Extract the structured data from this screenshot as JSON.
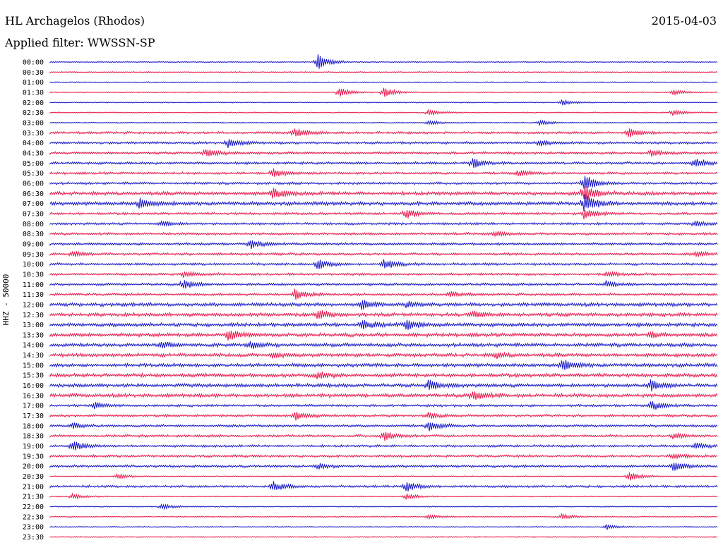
{
  "header": {
    "station": "HL Archagelos (Rhodos)",
    "date": "2015-04-03",
    "filter": "Applied filter: WWSSN-SP"
  },
  "chart_data": {
    "type": "line",
    "title": "HL Archagelos (Rhodos)",
    "subtitle": "Applied filter: WWSSN-SP",
    "date": "2015-04-03",
    "ylabel": "HHZ - 50000",
    "xlabel": "",
    "grid": false,
    "legend": "none",
    "tick_labels": [
      "00:00",
      "00:30",
      "01:00",
      "01:30",
      "02:00",
      "02:30",
      "03:00",
      "03:30",
      "04:00",
      "04:30",
      "05:00",
      "05:30",
      "06:00",
      "06:30",
      "07:00",
      "07:30",
      "08:00",
      "08:30",
      "09:00",
      "09:30",
      "10:00",
      "10:30",
      "11:00",
      "11:30",
      "12:00",
      "12:30",
      "13:00",
      "13:30",
      "14:00",
      "14:30",
      "15:00",
      "15:30",
      "16:00",
      "16:30",
      "17:00",
      "17:30",
      "18:00",
      "18:30",
      "19:00",
      "19:30",
      "20:00",
      "20:30",
      "21:00",
      "21:30",
      "22:00",
      "22:30",
      "23:00",
      "23:30"
    ],
    "trace_colors": [
      "#1515c8",
      "#e8174a"
    ],
    "traces": [
      {
        "start": "00:00",
        "activity": "low",
        "events": [
          {
            "minute": 12,
            "amp": "large"
          }
        ]
      },
      {
        "start": "00:30",
        "activity": "low",
        "events": []
      },
      {
        "start": "01:00",
        "activity": "low",
        "events": []
      },
      {
        "start": "01:30",
        "activity": "low",
        "events": [
          {
            "minute": 13,
            "amp": "medium"
          },
          {
            "minute": 15,
            "amp": "medium"
          },
          {
            "minute": 28,
            "amp": "small"
          }
        ]
      },
      {
        "start": "02:00",
        "activity": "low",
        "events": [
          {
            "minute": 23,
            "amp": "small"
          }
        ]
      },
      {
        "start": "02:30",
        "activity": "low",
        "events": [
          {
            "minute": 17,
            "amp": "small"
          },
          {
            "minute": 28,
            "amp": "small"
          }
        ]
      },
      {
        "start": "03:00",
        "activity": "low",
        "events": [
          {
            "minute": 17,
            "amp": "small"
          },
          {
            "minute": 22,
            "amp": "small"
          }
        ]
      },
      {
        "start": "03:30",
        "activity": "medium",
        "events": [
          {
            "minute": 11,
            "amp": "medium"
          },
          {
            "minute": 26,
            "amp": "medium"
          }
        ]
      },
      {
        "start": "04:00",
        "activity": "medium",
        "events": [
          {
            "minute": 8,
            "amp": "medium"
          },
          {
            "minute": 22,
            "amp": "small"
          }
        ]
      },
      {
        "start": "04:30",
        "activity": "medium",
        "events": [
          {
            "minute": 7,
            "amp": "medium"
          },
          {
            "minute": 27,
            "amp": "small"
          }
        ]
      },
      {
        "start": "05:00",
        "activity": "medium",
        "events": [
          {
            "minute": 19,
            "amp": "medium"
          },
          {
            "minute": 29,
            "amp": "medium"
          }
        ]
      },
      {
        "start": "05:30",
        "activity": "medium",
        "events": [
          {
            "minute": 10,
            "amp": "medium"
          },
          {
            "minute": 21,
            "amp": "small"
          }
        ]
      },
      {
        "start": "06:00",
        "activity": "medium",
        "events": [
          {
            "minute": 24,
            "amp": "large"
          }
        ]
      },
      {
        "start": "06:30",
        "activity": "high",
        "events": [
          {
            "minute": 10,
            "amp": "medium"
          },
          {
            "minute": 24,
            "amp": "large"
          }
        ]
      },
      {
        "start": "07:00",
        "activity": "high",
        "events": [
          {
            "minute": 4,
            "amp": "medium"
          },
          {
            "minute": 24,
            "amp": "large"
          }
        ]
      },
      {
        "start": "07:30",
        "activity": "medium",
        "events": [
          {
            "minute": 16,
            "amp": "medium"
          },
          {
            "minute": 24,
            "amp": "medium"
          }
        ]
      },
      {
        "start": "08:00",
        "activity": "medium",
        "events": [
          {
            "minute": 5,
            "amp": "small"
          },
          {
            "minute": 29,
            "amp": "small"
          }
        ]
      },
      {
        "start": "08:30",
        "activity": "medium",
        "events": [
          {
            "minute": 20,
            "amp": "small"
          }
        ]
      },
      {
        "start": "09:00",
        "activity": "medium",
        "events": [
          {
            "minute": 9,
            "amp": "medium"
          }
        ]
      },
      {
        "start": "09:30",
        "activity": "medium",
        "events": [
          {
            "minute": 1,
            "amp": "small"
          },
          {
            "minute": 29,
            "amp": "small"
          }
        ]
      },
      {
        "start": "10:00",
        "activity": "medium",
        "events": [
          {
            "minute": 12,
            "amp": "medium"
          },
          {
            "minute": 15,
            "amp": "medium"
          }
        ]
      },
      {
        "start": "10:30",
        "activity": "medium",
        "events": [
          {
            "minute": 6,
            "amp": "small"
          },
          {
            "minute": 25,
            "amp": "small"
          }
        ]
      },
      {
        "start": "11:00",
        "activity": "medium",
        "events": [
          {
            "minute": 6,
            "amp": "medium"
          },
          {
            "minute": 25,
            "amp": "small"
          }
        ]
      },
      {
        "start": "11:30",
        "activity": "medium",
        "events": [
          {
            "minute": 11,
            "amp": "medium"
          },
          {
            "minute": 18,
            "amp": "small"
          }
        ]
      },
      {
        "start": "12:00",
        "activity": "high",
        "events": [
          {
            "minute": 14,
            "amp": "medium"
          },
          {
            "minute": 16,
            "amp": "small"
          }
        ]
      },
      {
        "start": "12:30",
        "activity": "high",
        "events": [
          {
            "minute": 12,
            "amp": "medium"
          },
          {
            "minute": 19,
            "amp": "small"
          }
        ]
      },
      {
        "start": "13:00",
        "activity": "high",
        "events": [
          {
            "minute": 14,
            "amp": "medium"
          },
          {
            "minute": 16,
            "amp": "medium"
          }
        ]
      },
      {
        "start": "13:30",
        "activity": "high",
        "events": [
          {
            "minute": 8,
            "amp": "medium"
          },
          {
            "minute": 27,
            "amp": "small"
          }
        ]
      },
      {
        "start": "14:00",
        "activity": "high",
        "events": [
          {
            "minute": 5,
            "amp": "small"
          },
          {
            "minute": 9,
            "amp": "small"
          }
        ]
      },
      {
        "start": "14:30",
        "activity": "high",
        "events": [
          {
            "minute": 10,
            "amp": "small"
          },
          {
            "minute": 20,
            "amp": "small"
          }
        ]
      },
      {
        "start": "15:00",
        "activity": "high",
        "events": [
          {
            "minute": 23,
            "amp": "medium"
          }
        ]
      },
      {
        "start": "15:30",
        "activity": "high",
        "events": [
          {
            "minute": 12,
            "amp": "small"
          }
        ]
      },
      {
        "start": "16:00",
        "activity": "high",
        "events": [
          {
            "minute": 17,
            "amp": "medium"
          },
          {
            "minute": 27,
            "amp": "medium"
          }
        ]
      },
      {
        "start": "16:30",
        "activity": "high",
        "events": [
          {
            "minute": 19,
            "amp": "medium"
          }
        ]
      },
      {
        "start": "17:00",
        "activity": "medium",
        "events": [
          {
            "minute": 2,
            "amp": "small"
          },
          {
            "minute": 27,
            "amp": "medium"
          }
        ]
      },
      {
        "start": "17:30",
        "activity": "medium",
        "events": [
          {
            "minute": 11,
            "amp": "medium"
          },
          {
            "minute": 17,
            "amp": "small"
          }
        ]
      },
      {
        "start": "18:00",
        "activity": "medium",
        "events": [
          {
            "minute": 1,
            "amp": "small"
          },
          {
            "minute": 17,
            "amp": "medium"
          }
        ]
      },
      {
        "start": "18:30",
        "activity": "medium",
        "events": [
          {
            "minute": 15,
            "amp": "medium"
          },
          {
            "minute": 28,
            "amp": "small"
          }
        ]
      },
      {
        "start": "19:00",
        "activity": "medium",
        "events": [
          {
            "minute": 1,
            "amp": "medium"
          },
          {
            "minute": 29,
            "amp": "small"
          }
        ]
      },
      {
        "start": "19:30",
        "activity": "medium",
        "events": [
          {
            "minute": 28,
            "amp": "small"
          }
        ]
      },
      {
        "start": "20:00",
        "activity": "medium",
        "events": [
          {
            "minute": 12,
            "amp": "small"
          },
          {
            "minute": 28,
            "amp": "medium"
          }
        ]
      },
      {
        "start": "20:30",
        "activity": "low",
        "events": [
          {
            "minute": 3,
            "amp": "small"
          },
          {
            "minute": 26,
            "amp": "medium"
          }
        ]
      },
      {
        "start": "21:00",
        "activity": "medium",
        "events": [
          {
            "minute": 10,
            "amp": "medium"
          },
          {
            "minute": 16,
            "amp": "medium"
          }
        ]
      },
      {
        "start": "21:30",
        "activity": "low",
        "events": [
          {
            "minute": 1,
            "amp": "small"
          },
          {
            "minute": 16,
            "amp": "small"
          }
        ]
      },
      {
        "start": "22:00",
        "activity": "low",
        "events": [
          {
            "minute": 5,
            "amp": "small"
          }
        ]
      },
      {
        "start": "22:30",
        "activity": "low",
        "events": [
          {
            "minute": 17,
            "amp": "small"
          },
          {
            "minute": 23,
            "amp": "small"
          }
        ]
      },
      {
        "start": "23:00",
        "activity": "low",
        "events": [
          {
            "minute": 25,
            "amp": "small"
          }
        ]
      },
      {
        "start": "23:30",
        "activity": "low",
        "events": []
      }
    ]
  }
}
